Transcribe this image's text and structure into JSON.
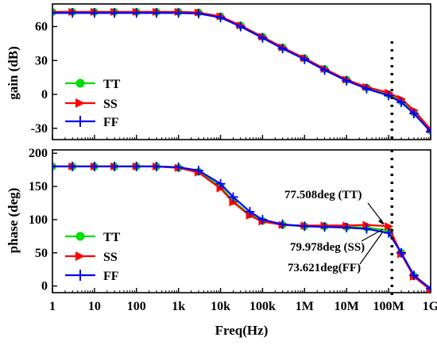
{
  "chart_data": [
    {
      "type": "line",
      "ylabel": "gain (dB)",
      "xlabel": "",
      "xscale": "log",
      "xlim": [
        1,
        1000000000
      ],
      "ylim": [
        -40,
        80
      ],
      "yticks": [
        "60",
        "30",
        "0",
        "-30"
      ],
      "grid": false,
      "legend": "lower-left",
      "x": [
        1,
        3,
        10,
        30,
        100,
        300,
        1000,
        3000,
        10000,
        30000,
        100000,
        300000,
        1000000,
        3000000,
        10000000,
        30000000,
        100000000,
        200000000,
        400000000,
        1000000000
      ],
      "series": [
        {
          "name": "TT",
          "color": "#00dd00",
          "marker": "circle",
          "values": [
            73,
            73,
            73,
            73,
            73,
            73,
            73,
            72.5,
            69,
            61,
            51,
            41.5,
            32,
            22.5,
            13,
            6,
            0,
            -6,
            -16,
            -32
          ]
        },
        {
          "name": "SS",
          "color": "#ff0000",
          "marker": "triangle-right",
          "values": [
            73,
            73,
            73,
            73,
            73,
            73,
            73,
            72.5,
            69,
            61,
            51,
            41.5,
            32,
            22.5,
            13,
            6.5,
            1.5,
            -4,
            -14,
            -31
          ]
        },
        {
          "name": "FF",
          "color": "#0000ff",
          "marker": "plus",
          "values": [
            72,
            72,
            72,
            72,
            72,
            72,
            72,
            71.5,
            68,
            60,
            50,
            40.5,
            31,
            21.5,
            12,
            5,
            -1,
            -7,
            -17,
            -33
          ]
        }
      ],
      "vline_x": 120000000
    },
    {
      "type": "line",
      "ylabel": "phase (deg)",
      "xlabel": "Freq(Hz)",
      "xscale": "log",
      "xlim": [
        1,
        1000000000
      ],
      "ylim": [
        -10,
        205
      ],
      "yticks": [
        "200",
        "150",
        "100",
        "50",
        "0"
      ],
      "xticks": [
        "1",
        "10",
        "100",
        "1k",
        "10k",
        "100k",
        "1M",
        "10M",
        "100M",
        "1G"
      ],
      "grid": false,
      "legend": "lower-left",
      "x": [
        1,
        3,
        10,
        30,
        100,
        300,
        1000,
        3000,
        10000,
        20000,
        50000,
        100000,
        300000,
        1000000,
        3000000,
        10000000,
        30000000,
        100000000,
        200000000,
        400000000,
        1000000000
      ],
      "series": [
        {
          "name": "TT",
          "color": "#00dd00",
          "marker": "circle",
          "values": [
            180,
            180,
            180,
            180,
            180,
            180,
            178,
            172,
            150,
            128,
            108,
            98,
            92,
            90,
            90,
            89,
            88,
            84,
            50,
            15,
            -5
          ]
        },
        {
          "name": "SS",
          "color": "#ff0000",
          "marker": "triangle-right",
          "values": [
            180,
            180,
            180,
            180,
            180,
            180,
            178,
            171,
            147,
            126,
            106,
            97,
            92,
            91,
            91,
            91,
            92,
            90,
            48,
            14,
            -6
          ]
        },
        {
          "name": "FF",
          "color": "#0000ff",
          "marker": "plus",
          "values": [
            180,
            180,
            180,
            180,
            180,
            180,
            179,
            174,
            154,
            134,
            112,
            100,
            93,
            90,
            89,
            88,
            86,
            80,
            50,
            16,
            -4
          ]
        }
      ],
      "vline_x": 120000000,
      "annotations": [
        {
          "text": "77.508deg (TT)"
        },
        {
          "text": "79.978deg (SS)"
        },
        {
          "text": "73.621deg(FF)"
        }
      ]
    }
  ]
}
